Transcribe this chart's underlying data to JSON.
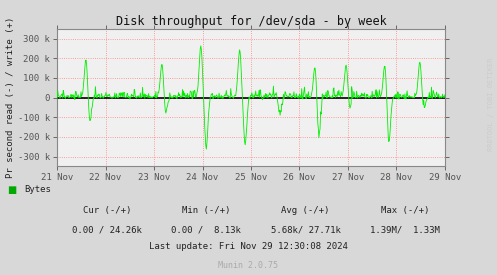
{
  "title": "Disk throughput for /dev/sda - by week",
  "ylabel": "Pr second read (-) / write (+)",
  "xlabel_ticks": [
    "21 Nov",
    "22 Nov",
    "23 Nov",
    "24 Nov",
    "25 Nov",
    "26 Nov",
    "27 Nov",
    "28 Nov",
    "29 Nov"
  ],
  "ylim": [
    -350000,
    350000
  ],
  "yticks": [
    -300000,
    -200000,
    -100000,
    0,
    100000,
    200000,
    300000
  ],
  "ytick_labels": [
    "-300 k",
    "-200 k",
    "-100 k",
    "0",
    "100 k",
    "200 k",
    "300 k"
  ],
  "bg_color": "#d8d8d8",
  "plot_bg_color": "#f0f0f0",
  "grid_color": "#ff8080",
  "line_color": "#00ee00",
  "zero_line_color": "#000000",
  "border_color": "#999999",
  "legend_color": "#00aa00",
  "legend_text": "Bytes",
  "footer_headers": [
    "Cur (-/+)",
    "Min (-/+)",
    "Avg (-/+)",
    "Max (-/+)"
  ],
  "footer_values": [
    "0.00 / 24.26k",
    "0.00 /  8.13k",
    "5.68k/ 27.71k",
    "1.39M/  1.33M"
  ],
  "footer_update": "Last update: Fri Nov 29 12:30:08 2024",
  "footer_munin": "Munin 2.0.75",
  "watermark": "RRDTOOL / TOBI OETIKER",
  "num_points": 700,
  "seed": 42
}
